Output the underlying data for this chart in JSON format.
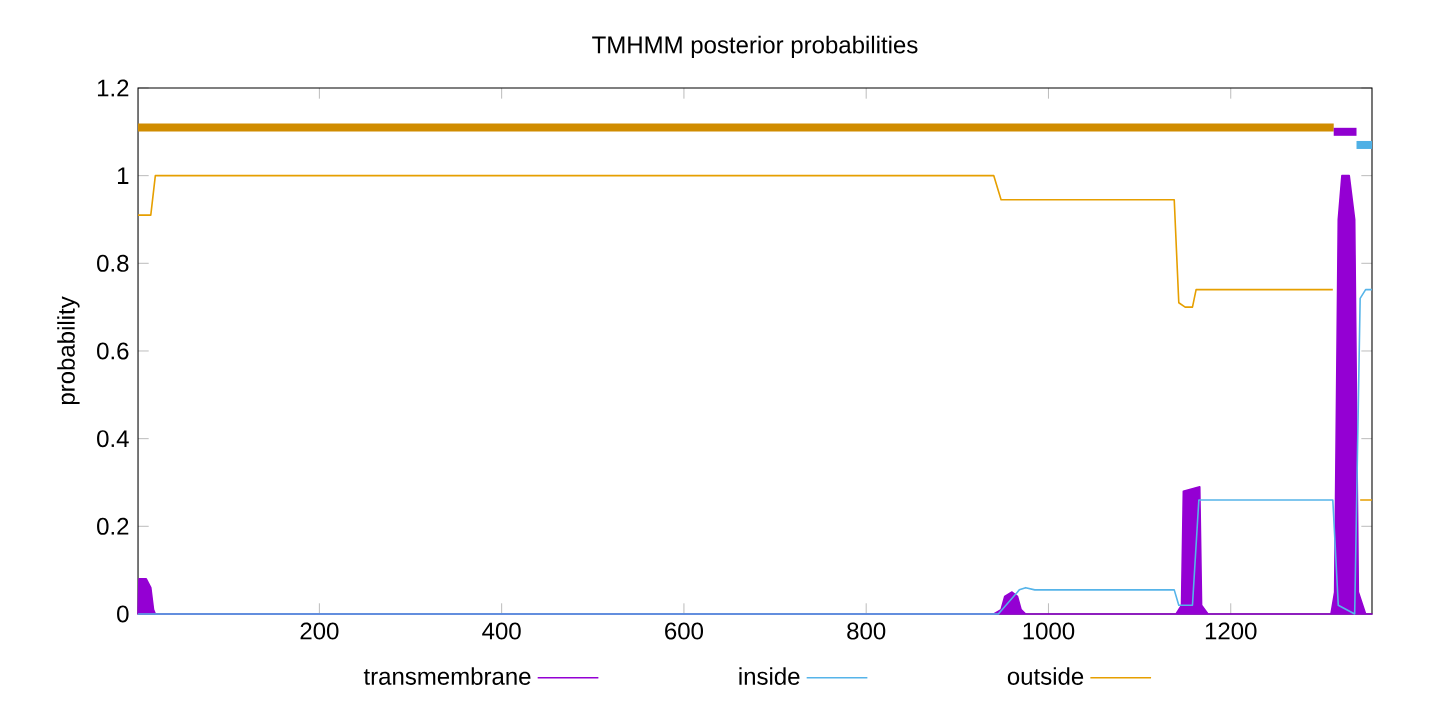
{
  "chart_data": {
    "type": "line",
    "title": "TMHMM posterior probabilities",
    "ylabel": "probability",
    "xlim": [
      1,
      1355
    ],
    "ylim": [
      0,
      1.2
    ],
    "xticks": [
      200,
      400,
      600,
      800,
      1000,
      1200
    ],
    "yticks": [
      0,
      0.2,
      0.4,
      0.6,
      0.8,
      1,
      1.2
    ],
    "legend": "bottom",
    "grid": false,
    "series": [
      {
        "name": "transmembrane",
        "type": "area",
        "color": "#9400d3",
        "x": [
          1,
          2,
          5,
          10,
          15,
          18,
          20,
          940,
          948,
          952,
          960,
          966,
          970,
          975,
          1140,
          1146,
          1148,
          1166,
          1168,
          1175,
          1310,
          1314,
          1318,
          1322,
          1330,
          1336,
          1340,
          1348,
          1355
        ],
        "values": [
          0,
          0.08,
          0.08,
          0.08,
          0.06,
          0.01,
          0,
          0,
          0.01,
          0.04,
          0.05,
          0.04,
          0.01,
          0,
          0,
          0.02,
          0.28,
          0.29,
          0.02,
          0,
          0,
          0.05,
          0.9,
          1.0,
          1.0,
          0.9,
          0.05,
          0,
          0
        ]
      },
      {
        "name": "inside",
        "color": "#56b4e9",
        "x": [
          1,
          945,
          968,
          975,
          985,
          1138,
          1143,
          1158,
          1165,
          1312,
          1318,
          1336,
          1342,
          1348,
          1355
        ],
        "values": [
          0,
          0,
          0.055,
          0.06,
          0.055,
          0.055,
          0.02,
          0.02,
          0.26,
          0.26,
          0.02,
          0,
          0.72,
          0.74,
          0.74
        ]
      },
      {
        "name": "outside",
        "color": "#e69f00",
        "x": [
          1,
          15,
          20,
          940,
          948,
          1138,
          1143,
          1150,
          1158,
          1162,
          1312,
          1318,
          1330,
          1338,
          1342,
          1355
        ],
        "values": [
          0.91,
          0.91,
          1.0,
          1.0,
          0.945,
          0.945,
          0.71,
          0.7,
          0.7,
          0.74,
          0.74,
          null,
          null,
          null,
          0.26,
          0.26
        ]
      },
      {
        "color": "#d08c00",
        "x": [
          1,
          1313
        ],
        "values": [
          1.11,
          1.11
        ]
      },
      {
        "color": "#9000d0",
        "x": [
          1313,
          1338
        ],
        "values": [
          1.1,
          1.1
        ]
      },
      {
        "color": "#4fb0e5",
        "x": [
          1338,
          1355
        ],
        "values": [
          1.07,
          1.07
        ]
      }
    ]
  }
}
